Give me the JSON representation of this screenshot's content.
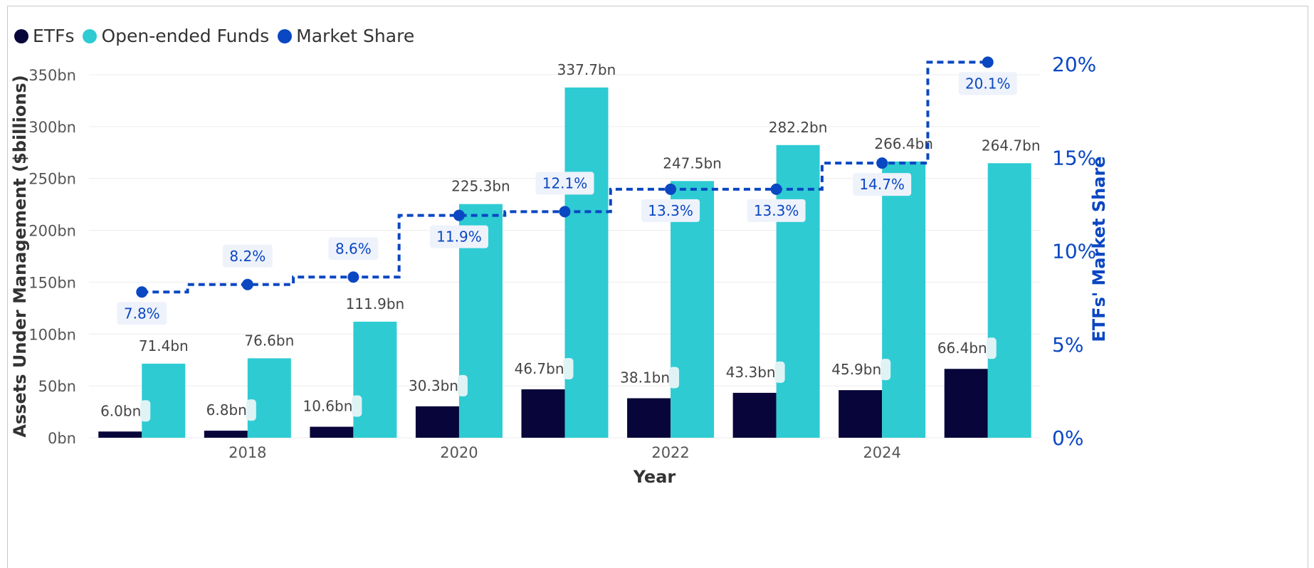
{
  "legend": [
    {
      "label": "ETFs",
      "color": "#07053a"
    },
    {
      "label": "Open-ended Funds",
      "color": "#2ecbd3"
    },
    {
      "label": "Market Share",
      "color": "#0a47c2"
    }
  ],
  "chart_data": {
    "type": "bar",
    "xlabel": "Year",
    "ylabel": "Assets Under Management ($billions)",
    "y2label": "ETFs' Market Share",
    "ylim": [
      0,
      350
    ],
    "y2lim": [
      0,
      20
    ],
    "yticks": [
      "0bn",
      "50bn",
      "100bn",
      "150bn",
      "200bn",
      "250bn",
      "300bn",
      "350bn"
    ],
    "y2ticks": [
      "0%",
      "5%",
      "10%",
      "15%",
      "20%"
    ],
    "x": [
      2017,
      2018,
      2019,
      2020,
      2021,
      2022,
      2023,
      2024,
      2025
    ],
    "xtick_labels": [
      "",
      "2018",
      "",
      "2020",
      "",
      "2022",
      "",
      "2024",
      ""
    ],
    "series": [
      {
        "name": "ETFs",
        "type": "bar",
        "color": "#07053a",
        "values": [
          6.0,
          6.8,
          10.6,
          30.3,
          46.7,
          38.1,
          43.3,
          45.9,
          66.4
        ],
        "labels": [
          "6.0bn",
          "6.8bn",
          "10.6bn",
          "30.3bn",
          "46.7bn",
          "38.1bn",
          "43.3bn",
          "45.9bn",
          "66.4bn"
        ]
      },
      {
        "name": "Open-ended Funds",
        "type": "bar",
        "color": "#2ecbd3",
        "values": [
          71.4,
          76.6,
          111.9,
          225.3,
          337.7,
          247.5,
          282.2,
          266.4,
          264.7
        ],
        "labels": [
          "71.4bn",
          "76.6bn",
          "111.9bn",
          "225.3bn",
          "337.7bn",
          "247.5bn",
          "282.2bn",
          "266.4bn",
          "264.7bn"
        ]
      },
      {
        "name": "Market Share",
        "type": "step-line",
        "color": "#0a47c2",
        "axis": "right",
        "values": [
          7.8,
          8.2,
          8.6,
          11.9,
          12.1,
          13.3,
          13.3,
          14.7,
          20.1
        ],
        "labels": [
          "7.8%",
          "8.2%",
          "8.6%",
          "11.9%",
          "12.1%",
          "13.3%",
          "13.3%",
          "14.7%",
          "20.1%"
        ]
      }
    ],
    "grid": true,
    "legend_position": "top-left"
  }
}
